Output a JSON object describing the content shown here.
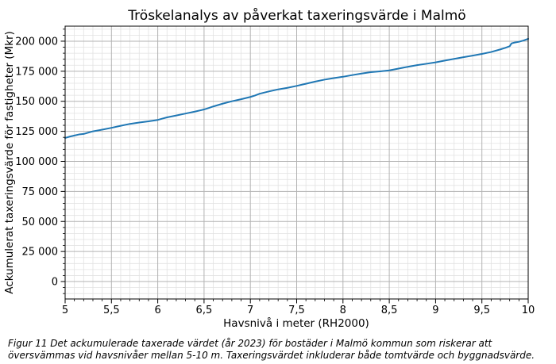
{
  "figure": {
    "caption": "Figur 11 Det ackumulerade taxerade värdet (år 2023) för bostäder i Malmö kommun som riskerar att översvämmas vid havsnivåer mellan 5-10 m. Taxeringsvärdet inkluderar både tomtvärde och byggnadsvärde."
  },
  "chart_data": {
    "type": "line",
    "title": "Tröskelanalys av påverkat taxeringsvärde i Malmö",
    "xlabel": "Havsnivå i meter (RH2000)",
    "ylabel": "Ackumulerat taxeringsvärde för fastigheter (Mkr)",
    "xlim": [
      5,
      10
    ],
    "ylim": [
      -14500,
      212500
    ],
    "grid": "major and minor, on",
    "legend": "none",
    "x_ticks": {
      "values": [
        5,
        5.5,
        6,
        6.5,
        7,
        7.5,
        8,
        8.5,
        9,
        9.5,
        10
      ],
      "labels": [
        "5",
        "5,5",
        "6",
        "6,5",
        "7",
        "7,5",
        "8",
        "8,5",
        "9",
        "9,5",
        "10"
      ]
    },
    "y_ticks": {
      "values": [
        0,
        25000,
        50000,
        75000,
        100000,
        125000,
        150000,
        175000,
        200000
      ],
      "labels": [
        "0",
        "25 000",
        "50 000",
        "75 000",
        "100 000",
        "125 000",
        "150 000",
        "175 000",
        "200 000"
      ]
    },
    "x_minor_step": 0.1,
    "y_minor_step": 5000,
    "colors": {
      "line": "#1f77b4",
      "grid_major": "#b3b3b3",
      "grid_minor": "#e2e2e2",
      "spine": "#000000",
      "text": "#000000"
    },
    "series": [
      {
        "x": [
          5.0,
          5.05,
          5.1,
          5.15,
          5.2,
          5.3,
          5.4,
          5.5,
          5.6,
          5.7,
          5.8,
          5.9,
          6.0,
          6.05,
          6.1,
          6.2,
          6.3,
          6.4,
          6.5,
          6.55,
          6.6,
          6.7,
          6.8,
          6.9,
          7.0,
          7.05,
          7.1,
          7.2,
          7.3,
          7.4,
          7.5,
          7.6,
          7.7,
          7.8,
          7.9,
          8.0,
          8.1,
          8.2,
          8.3,
          8.4,
          8.5,
          8.6,
          8.7,
          8.8,
          8.9,
          9.0,
          9.1,
          9.2,
          9.3,
          9.4,
          9.5,
          9.6,
          9.7,
          9.75,
          9.8,
          9.82,
          9.85,
          9.9,
          9.95,
          10.0
        ],
        "y": [
          119500,
          120600,
          121500,
          122400,
          122800,
          125000,
          126400,
          127900,
          129600,
          131200,
          132300,
          133300,
          134500,
          135600,
          136600,
          138200,
          139800,
          141400,
          143200,
          144400,
          145700,
          148000,
          150000,
          151700,
          153600,
          154800,
          156300,
          158200,
          159900,
          161200,
          162800,
          164600,
          166400,
          168000,
          169300,
          170400,
          171800,
          173100,
          174200,
          174900,
          175700,
          177200,
          178700,
          180100,
          181200,
          182400,
          183900,
          185300,
          186700,
          188000,
          189400,
          191000,
          193200,
          194400,
          195800,
          198200,
          198800,
          199500,
          200600,
          202000
        ]
      }
    ]
  }
}
